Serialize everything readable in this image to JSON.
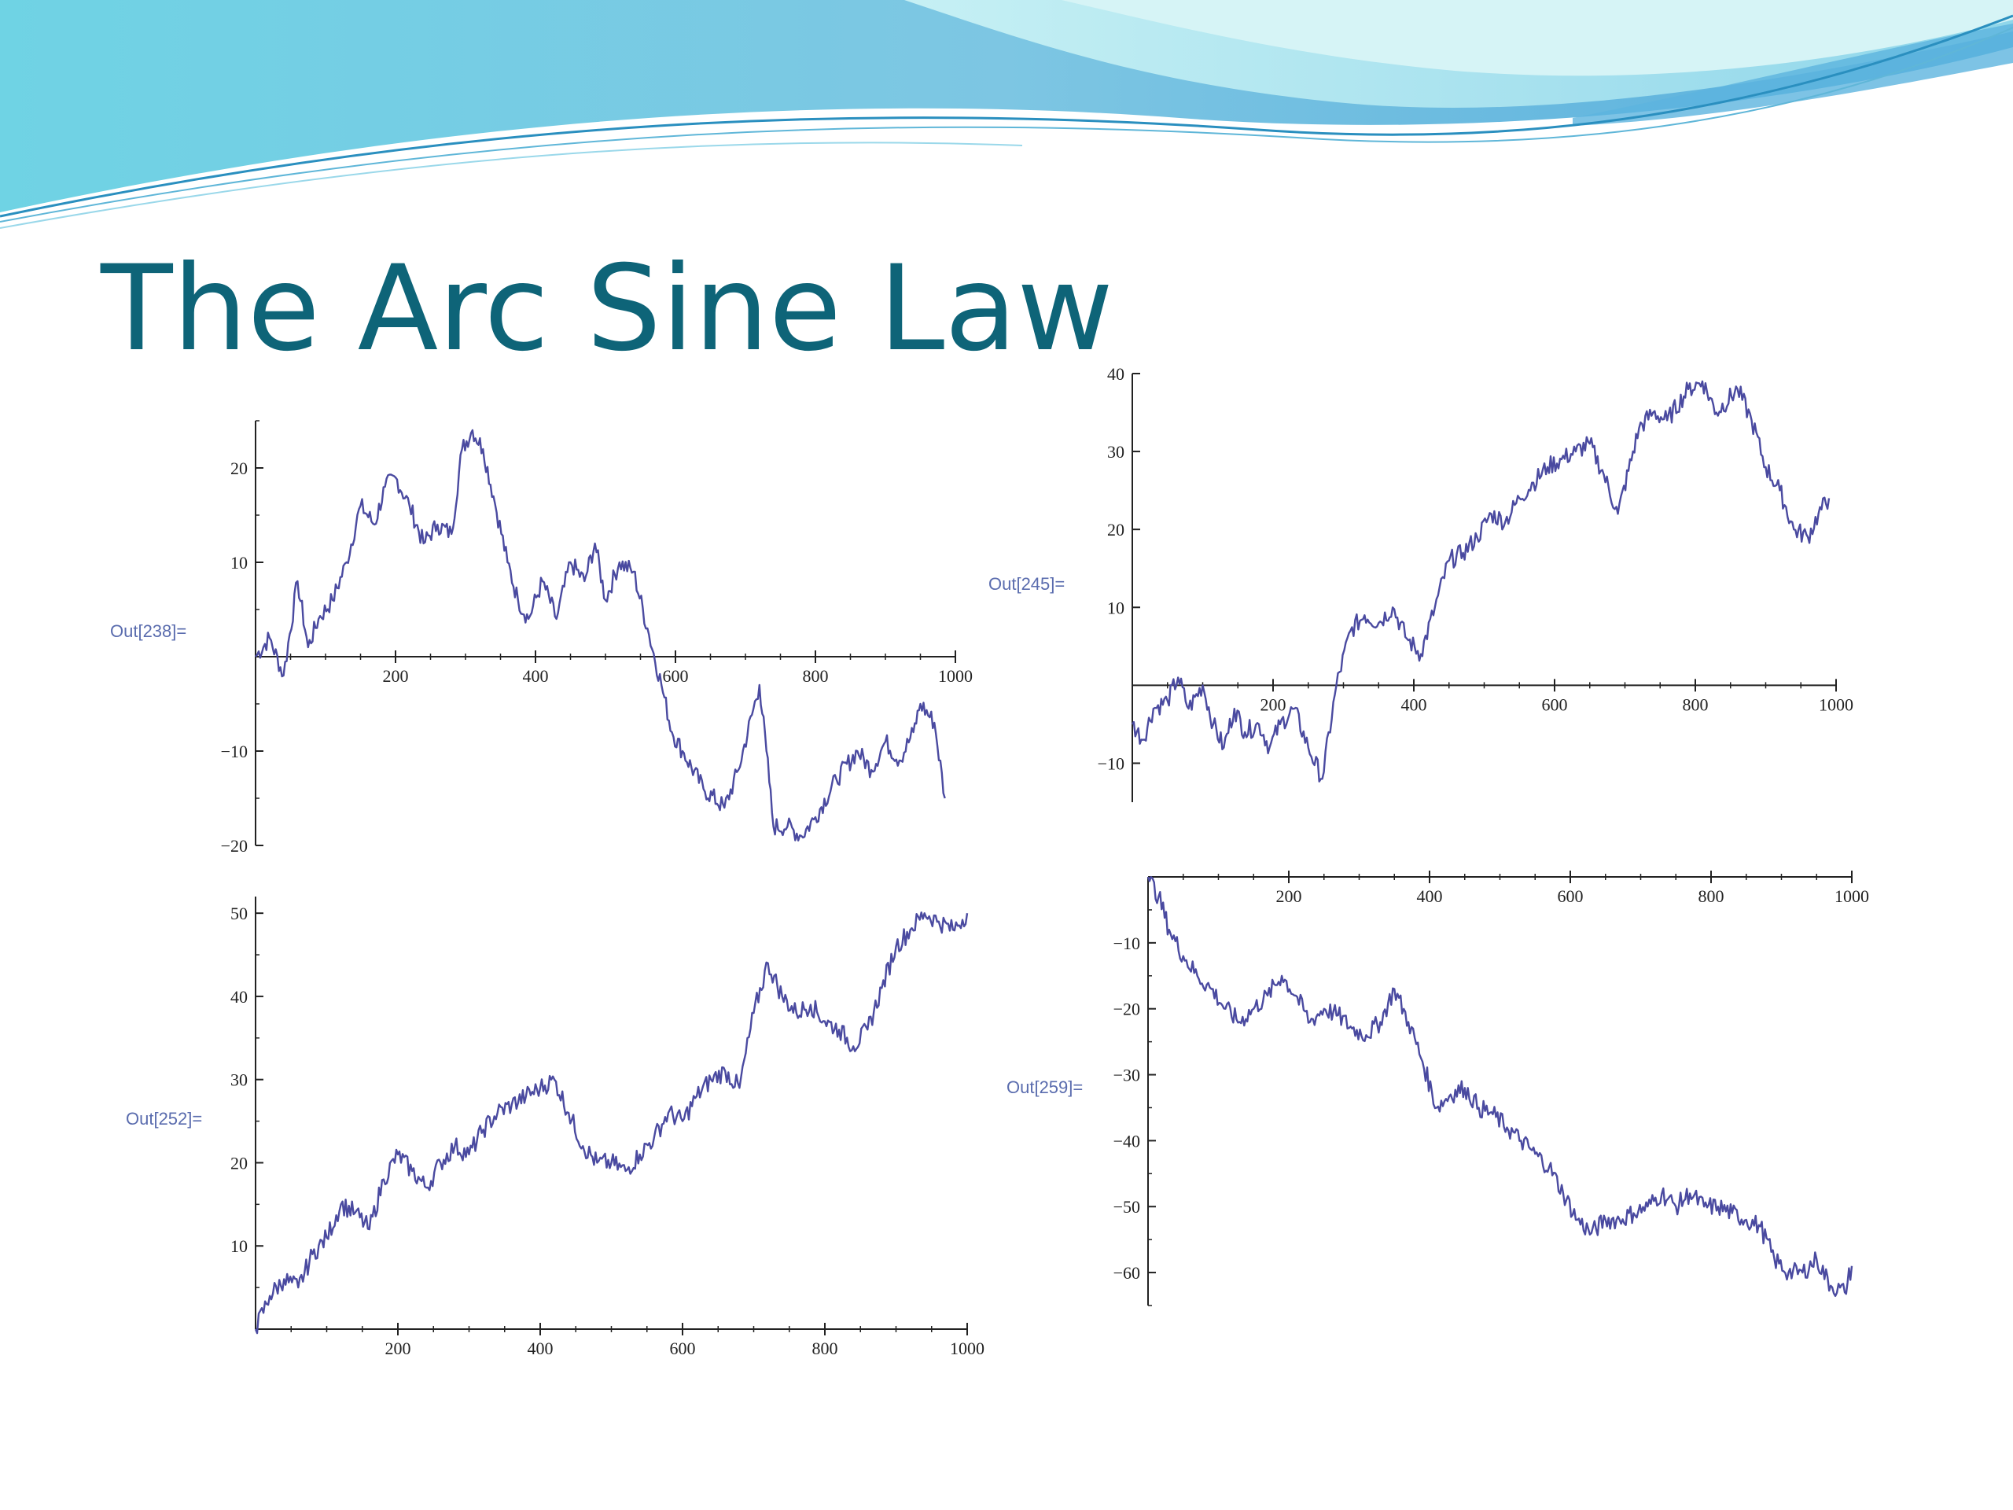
{
  "slide": {
    "title": "The Arc Sine Law"
  },
  "colors": {
    "title": "#0e6478",
    "series": "#4a4aa0",
    "out_label": "#5a6cae",
    "banner_light": "#a8e6ef",
    "banner_mid": "#6cc3e2",
    "banner_dark": "#3a93cf"
  },
  "chart_data": [
    {
      "type": "line",
      "out_label": "Out[238]=",
      "xlim": [
        0,
        1000
      ],
      "ylim": [
        -20,
        25
      ],
      "x_ticks": [
        200,
        400,
        600,
        800,
        1000
      ],
      "y_ticks": [
        -20,
        -10,
        10,
        20
      ],
      "series": [
        {
          "x": [
            0,
            20,
            40,
            60,
            75,
            90,
            110,
            130,
            150,
            170,
            185,
            200,
            220,
            240,
            260,
            280,
            295,
            310,
            325,
            340,
            360,
            375,
            390,
            410,
            430,
            450,
            470,
            485,
            500,
            520,
            540,
            560,
            580,
            595,
            610,
            640,
            670,
            690,
            720,
            730,
            740,
            760,
            780,
            800,
            830,
            860,
            880,
            900,
            920,
            940,
            950,
            970,
            985
          ],
          "y": [
            0,
            2,
            -2,
            8,
            1,
            4,
            6,
            10,
            16,
            14,
            18,
            19,
            16,
            12,
            14,
            13,
            22,
            24,
            22,
            17,
            10,
            6,
            4,
            8,
            4,
            10,
            8,
            12,
            6,
            10,
            9,
            3,
            -3,
            -8,
            -10,
            -14,
            -16,
            -12,
            -3,
            -10,
            -18,
            -18,
            -19,
            -17,
            -13,
            -10,
            -12,
            -9,
            -11,
            -8,
            -5,
            -7,
            -15
          ]
        }
      ]
    },
    {
      "type": "line",
      "out_label": "Out[245]=",
      "xlim": [
        0,
        1000
      ],
      "ylim": [
        -15,
        40
      ],
      "x_ticks": [
        200,
        400,
        600,
        800,
        1000
      ],
      "y_ticks": [
        -10,
        10,
        20,
        30,
        40
      ],
      "series": [
        {
          "x": [
            0,
            15,
            30,
            50,
            65,
            80,
            100,
            115,
            130,
            145,
            160,
            180,
            195,
            210,
            230,
            250,
            270,
            290,
            310,
            330,
            350,
            370,
            390,
            410,
            430,
            450,
            470,
            490,
            510,
            530,
            550,
            570,
            590,
            610,
            630,
            650,
            670,
            690,
            720,
            740,
            760,
            790,
            810,
            830,
            860,
            880,
            900,
            920,
            940,
            960,
            975,
            990
          ],
          "y": [
            -5,
            -7,
            -3,
            -2,
            1,
            -3,
            0,
            -5,
            -8,
            -3,
            -6,
            -5,
            -8,
            -5,
            -3,
            -8,
            -12,
            0,
            7,
            9,
            8,
            10,
            6,
            4,
            10,
            16,
            17,
            19,
            22,
            21,
            24,
            26,
            28,
            29,
            30,
            31,
            27,
            22,
            33,
            35,
            34,
            38,
            39,
            35,
            38,
            34,
            28,
            25,
            20,
            19,
            22,
            24
          ]
        }
      ]
    },
    {
      "type": "line",
      "out_label": "Out[252]=",
      "xlim": [
        0,
        1000
      ],
      "ylim": [
        0,
        52
      ],
      "x_ticks": [
        200,
        400,
        600,
        800,
        1000
      ],
      "y_ticks": [
        10,
        20,
        30,
        40,
        50
      ],
      "series": [
        {
          "x": [
            0,
            20,
            40,
            60,
            80,
            100,
            120,
            140,
            160,
            180,
            200,
            220,
            240,
            260,
            280,
            300,
            320,
            340,
            360,
            380,
            400,
            420,
            440,
            460,
            480,
            500,
            520,
            540,
            560,
            580,
            600,
            620,
            640,
            660,
            680,
            700,
            720,
            740,
            760,
            780,
            800,
            820,
            840,
            860,
            880,
            900,
            920,
            940,
            960,
            980,
            1000
          ],
          "y": [
            0,
            4,
            6,
            5,
            9,
            11,
            15,
            14,
            12,
            18,
            21,
            19,
            17,
            20,
            22,
            21,
            24,
            26,
            27,
            28,
            29,
            30,
            26,
            22,
            20,
            20,
            19,
            21,
            23,
            26,
            25,
            28,
            30,
            31,
            29,
            38,
            44,
            40,
            38,
            39,
            37,
            36,
            34,
            36,
            41,
            46,
            48,
            50,
            49,
            48,
            50
          ]
        }
      ]
    },
    {
      "type": "line",
      "out_label": "Out[259]=",
      "xlim": [
        0,
        1000
      ],
      "ylim": [
        -65,
        0
      ],
      "x_ticks": [
        200,
        400,
        600,
        800,
        1000
      ],
      "y_ticks": [
        -10,
        -20,
        -30,
        -40,
        -50,
        -60
      ],
      "series": [
        {
          "x": [
            0,
            15,
            30,
            50,
            70,
            90,
            110,
            130,
            150,
            170,
            190,
            210,
            230,
            250,
            270,
            290,
            310,
            330,
            350,
            370,
            390,
            410,
            430,
            450,
            470,
            490,
            510,
            530,
            550,
            570,
            590,
            610,
            630,
            650,
            670,
            690,
            710,
            730,
            750,
            770,
            790,
            810,
            830,
            850,
            870,
            890,
            910,
            930,
            950,
            970,
            990,
            1000
          ],
          "y": [
            0,
            -3,
            -8,
            -12,
            -15,
            -17,
            -20,
            -22,
            -20,
            -18,
            -15,
            -18,
            -22,
            -20,
            -21,
            -23,
            -24,
            -22,
            -17,
            -22,
            -28,
            -35,
            -33,
            -32,
            -35,
            -36,
            -38,
            -40,
            -42,
            -44,
            -48,
            -52,
            -54,
            -52,
            -52,
            -51,
            -50,
            -48,
            -50,
            -48,
            -50,
            -50,
            -51,
            -52,
            -53,
            -58,
            -60,
            -60,
            -58,
            -62,
            -63,
            -59
          ]
        }
      ]
    }
  ]
}
